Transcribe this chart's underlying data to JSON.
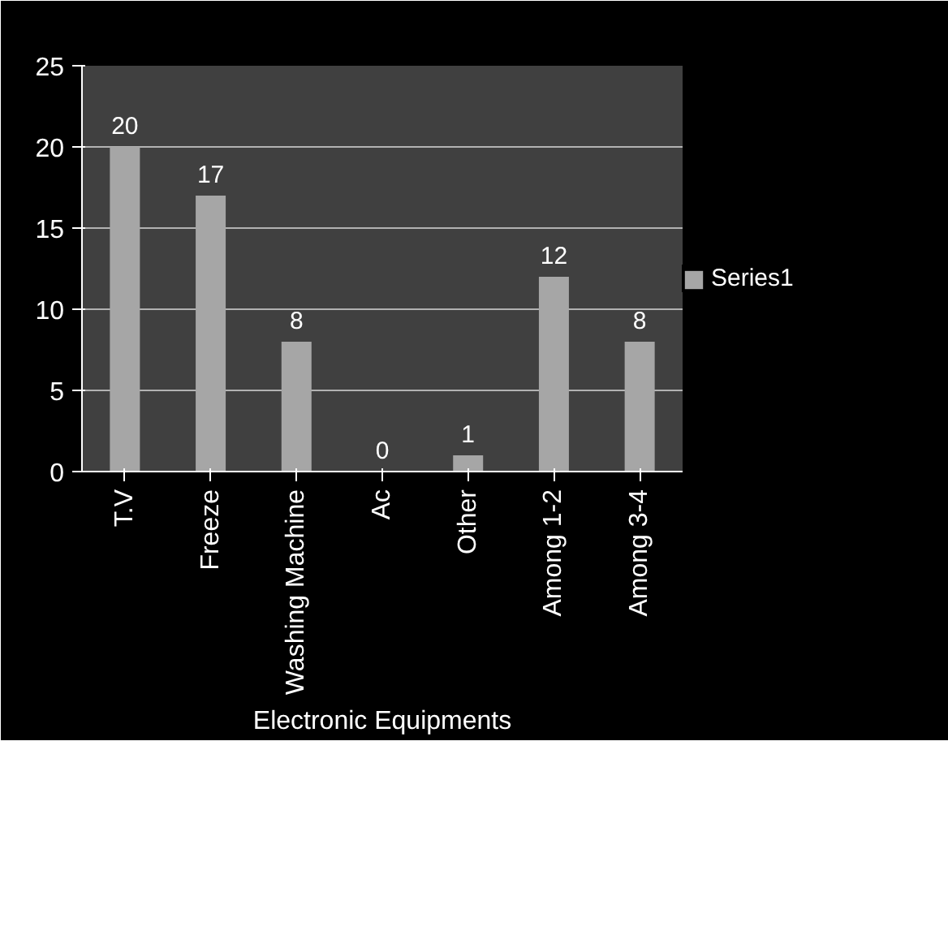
{
  "chart_data": {
    "type": "bar",
    "xlabel": "Electronic Equipments",
    "categories": [
      "T.V",
      "Freeze",
      "Washing Machine",
      "Ac",
      "Other",
      "Among 1-2",
      "Among 3-4"
    ],
    "series": [
      {
        "name": "Series1",
        "color": "#a6a6a6",
        "values": [
          20,
          17,
          8,
          0,
          1,
          12,
          8
        ]
      }
    ],
    "ylim": [
      0,
      25
    ],
    "yticks": [
      0,
      5,
      10,
      15,
      20,
      25
    ],
    "grid": "y",
    "legend": "right",
    "data_labels": true
  }
}
